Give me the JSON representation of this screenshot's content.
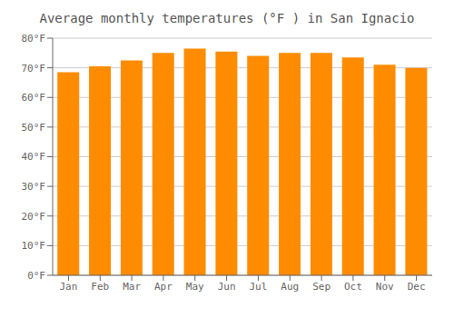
{
  "chart_data": {
    "type": "bar",
    "title": "Average monthly temperatures (°F ) in San Ignacio",
    "categories": [
      "Jan",
      "Feb",
      "Mar",
      "Apr",
      "May",
      "Jun",
      "Jul",
      "Aug",
      "Sep",
      "Oct",
      "Nov",
      "Dec"
    ],
    "values": [
      68.5,
      70.5,
      72.5,
      75.0,
      76.5,
      75.5,
      74.0,
      75.0,
      75.0,
      73.5,
      71.0,
      70.0
    ],
    "color": "#FF8C00",
    "ylim": [
      0,
      80
    ],
    "yticks": [
      {
        "value": 0,
        "label": "0°F"
      },
      {
        "value": 10,
        "label": "10°F"
      },
      {
        "value": 20,
        "label": "20°F"
      },
      {
        "value": 30,
        "label": "30°F"
      },
      {
        "value": 40,
        "label": "40°F"
      },
      {
        "value": 50,
        "label": "50°F"
      },
      {
        "value": 60,
        "label": "60°F"
      },
      {
        "value": 70,
        "label": "70°F"
      },
      {
        "value": 80,
        "label": "80°F"
      }
    ],
    "grid": true
  }
}
